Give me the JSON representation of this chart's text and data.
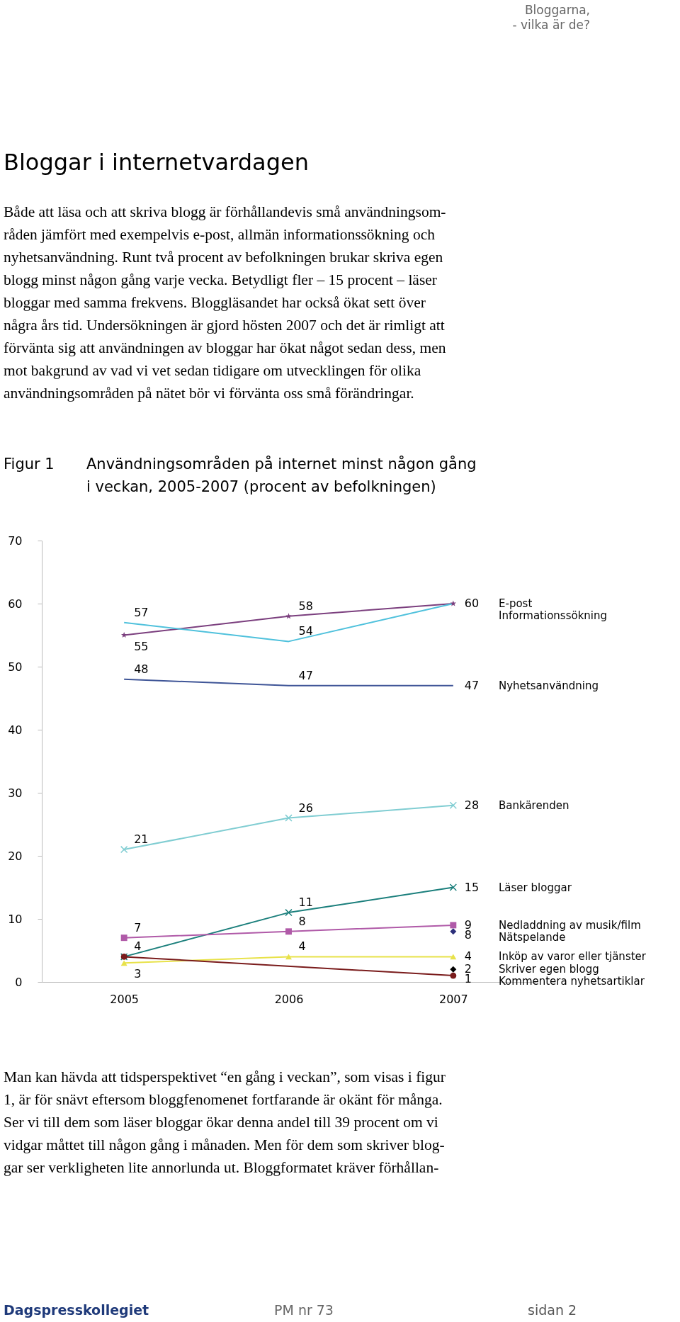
{
  "chart_data": {
    "type": "line",
    "title": "Användningsområden på internet minst någon gång i veckan, 2005-2007 (procent av befolkningen)",
    "categories": [
      "2005",
      "2006",
      "2007"
    ],
    "ylim": [
      0,
      70
    ],
    "yticks": [
      0,
      10,
      20,
      30,
      40,
      50,
      60,
      70
    ],
    "series": [
      {
        "name": "E-post",
        "color": "#7b3f7e",
        "marker": "star",
        "values": [
          55,
          58,
          60
        ],
        "value_labels": [
          "55",
          "58",
          "60"
        ]
      },
      {
        "name": "Informationssökning",
        "color": "#4fc1dc",
        "marker": "none",
        "values": [
          57,
          54,
          60
        ],
        "value_labels": [
          "57",
          "54",
          null
        ]
      },
      {
        "name": "Nyhetsanvändning",
        "color": "#3f5597",
        "marker": "none",
        "values": [
          48,
          47,
          47
        ],
        "value_labels": [
          "48",
          "47",
          "47"
        ]
      },
      {
        "name": "Bankärenden",
        "color": "#80cdd2",
        "marker": "cross",
        "values": [
          21,
          26,
          28
        ],
        "value_labels": [
          "21",
          "26",
          "28"
        ]
      },
      {
        "name": "Läser bloggar",
        "color": "#1b7f7c",
        "marker": "cross",
        "values": [
          4,
          11,
          15
        ],
        "value_labels": [
          "4",
          "11",
          "15"
        ]
      },
      {
        "name": "Nedladdning av musik/film",
        "color": "#b05aa8",
        "marker": "square",
        "values": [
          7,
          8,
          9
        ],
        "value_labels": [
          "7",
          "8",
          "9"
        ]
      },
      {
        "name": "Nätspelande",
        "color": "#2c2f7a",
        "marker": "diamond",
        "values": [
          null,
          null,
          8
        ],
        "value_labels": [
          null,
          null,
          "8"
        ]
      },
      {
        "name": "Inköp av varor eller tjänster",
        "color": "#e8e24a",
        "marker": "triangle",
        "values": [
          3,
          4,
          4
        ],
        "value_labels": [
          "3",
          "4",
          "4"
        ]
      },
      {
        "name": "Skriver egen blogg",
        "color": "#000000",
        "marker": "diamond",
        "values": [
          null,
          null,
          2
        ],
        "value_labels": [
          null,
          null,
          "2"
        ]
      },
      {
        "name": "Kommentera nyhetsartiklar",
        "color": "#7a1c1c",
        "marker": "circle",
        "values": [
          4,
          null,
          1
        ],
        "value_labels": [
          null,
          null,
          "1"
        ]
      }
    ],
    "annotations": [
      "Bloggarna,\n- vilka är de?",
      "Bloggar i internetvardagen",
      "Både att läsa och att skriva blogg är förhållandevis små användningsom-\nråden jämfört med exempelvis e-post, allmän informationssökning och\nnyhetsanvändning. Runt två procent av befolkningen brukar skriva egen\nblogg minst någon gång varje vecka. Betydligt fler – 15 procent – läser\nbloggar med samma frekvens. Bloggläsandet har också ökat sett över\nnågra års tid. Undersökningen är gjord hösten 2007 och det är rimligt att\nförvänta sig att användningen av bloggar har ökat något sedan dess, men\nmot bakgrund av vad vi vet sedan tidigare om utvecklingen för olika\nanvändningsområden på nätet bör vi förvänta oss små förändringar.",
      "Figur 1",
      "Man kan hävda att tidsperspektivet “en gång i veckan”, som visas i figur\n1, är för snävt eftersom bloggfenomenet fortfarande är okänt för många.\nSer vi till dem som läser bloggar ökar denna andel till 39 procent om vi\nvidgar måttet till någon gång i månaden. Men för dem som skriver blog-\ngar ser verkligheten lite annorlunda ut. Bloggformatet kräver förhållan-",
      "Dagspresskollegiet",
      "PM nr 73",
      "sidan 2"
    ]
  }
}
